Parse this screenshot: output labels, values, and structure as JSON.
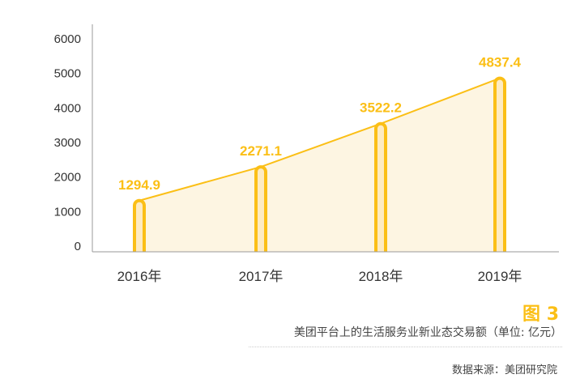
{
  "chart_data": {
    "type": "bar+line",
    "categories": [
      "2016年",
      "2017年",
      "2018年",
      "2019年"
    ],
    "values": [
      1294.9,
      2271.1,
      3522.2,
      4837.4
    ],
    "data_labels": [
      "1294.9",
      "2271.1",
      "3522.2",
      "4837.4"
    ],
    "ylim": [
      0,
      6000
    ],
    "yticks": [
      "0",
      "1000",
      "2000",
      "3000",
      "4000",
      "5000",
      "6000"
    ],
    "grid": false,
    "colors": {
      "accent": "#fbbf16",
      "fill": "#fdf5e2",
      "bar_fill": "#fdebc3"
    }
  },
  "caption": {
    "figure_label": "图 3",
    "title": "美团平台上的生活服务业新业态交易额（单位: 亿元）",
    "source": "数据来源：美团研究院"
  }
}
